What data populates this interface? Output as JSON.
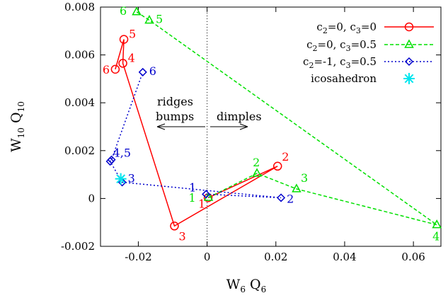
{
  "chart_data": {
    "type": "line",
    "xlabel": {
      "main": "W",
      "s1": "6",
      "mid": " Q",
      "s2": "6"
    },
    "ylabel": {
      "main": "W",
      "s1": "10",
      "mid": " Q",
      "s2": "10"
    },
    "xlim": [
      -0.031,
      0.068
    ],
    "ylim": [
      -0.002,
      0.008
    ],
    "xticks": [
      {
        "v": -0.02,
        "label": "-0.02"
      },
      {
        "v": 0,
        "label": "0"
      },
      {
        "v": 0.02,
        "label": "0.02"
      },
      {
        "v": 0.04,
        "label": "0.04"
      },
      {
        "v": 0.06,
        "label": "0.06"
      }
    ],
    "yticks": [
      {
        "v": -0.002,
        "label": "-0.002"
      },
      {
        "v": 0,
        "label": "0"
      },
      {
        "v": 0.002,
        "label": "0.002"
      },
      {
        "v": 0.004,
        "label": "0.004"
      },
      {
        "v": 0.006,
        "label": "0.006"
      },
      {
        "v": 0.008,
        "label": "0.008"
      }
    ],
    "grid": false,
    "legend_position": "top-right",
    "vertical_line_x": 0,
    "annotations": {
      "left_line1": "ridges",
      "left_line2": "bumps",
      "right": "dimples"
    },
    "series": [
      {
        "legend": {
          "a": "c",
          "a_sub": "2",
          "b": "=0, c",
          "b_sub": "3",
          "c": "=0"
        },
        "color": "#ff0000",
        "marker": "circle",
        "dash": "",
        "points": [
          {
            "x": 0.0003,
            "y": 3e-05,
            "label": "1"
          },
          {
            "x": 0.0205,
            "y": 0.00135,
            "label": "2"
          },
          {
            "x": -0.0095,
            "y": -0.00115,
            "label": "3"
          },
          {
            "x": -0.0245,
            "y": 0.00565,
            "label": "4"
          },
          {
            "x": -0.0242,
            "y": 0.00665,
            "label": "5"
          },
          {
            "x": -0.0267,
            "y": 0.0054,
            "label": "6"
          }
        ]
      },
      {
        "legend": {
          "a": "c",
          "a_sub": "2",
          "b": "=0, c",
          "b_sub": "3",
          "c": "=0.5"
        },
        "color": "#00e000",
        "marker": "triangle",
        "dash": "5,3",
        "points": [
          {
            "x": 0.0004,
            "y": 4e-05,
            "label": "1"
          },
          {
            "x": 0.0145,
            "y": 0.00105,
            "label": "2"
          },
          {
            "x": 0.026,
            "y": 0.0004,
            "label": "3"
          },
          {
            "x": 0.0668,
            "y": -0.0011,
            "label": "4"
          },
          {
            "x": -0.0168,
            "y": 0.00745,
            "label": "5"
          },
          {
            "x": -0.0205,
            "y": 0.0078,
            "label": "6"
          }
        ]
      },
      {
        "legend": {
          "a": "c",
          "a_sub": "2",
          "b": "=-1, c",
          "b_sub": "3",
          "c": "=0.5"
        },
        "color": "#0000cc",
        "marker": "diamond",
        "dash": "2,3",
        "points": [
          {
            "x": -0.0003,
            "y": 0.00018,
            "label": "1"
          },
          {
            "x": 0.0215,
            "y": 3e-05,
            "label": "2"
          },
          {
            "x": -0.0247,
            "y": 0.00068,
            "label": "3"
          },
          {
            "x": -0.0282,
            "y": 0.00155,
            "label": ""
          },
          {
            "x": -0.0278,
            "y": 0.00162,
            "label": "4,5"
          },
          {
            "x": -0.0187,
            "y": 0.00528,
            "label": "6"
          }
        ]
      },
      {
        "legend": {
          "a": "icosahedron",
          "a_sub": "",
          "b": "",
          "b_sub": "",
          "c": ""
        },
        "color": "#00e5ee",
        "marker": "star",
        "dash": "none",
        "points": [
          {
            "x": -0.0251,
            "y": 0.00082,
            "label": ""
          }
        ]
      }
    ]
  }
}
